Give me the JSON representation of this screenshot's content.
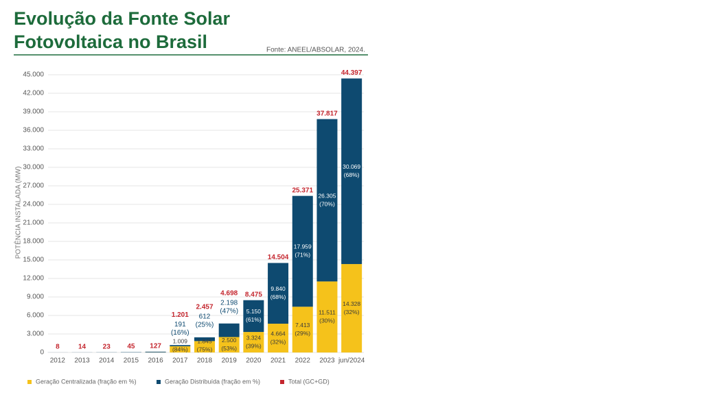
{
  "chart_data": {
    "type": "stacked_bar",
    "title": [
      "Evolução da Fonte Solar",
      "Fotovoltaica no Brasil"
    ],
    "source": "Fonte: ANEEL/ABSOLAR, 2024.",
    "y_label": "POTÊNCIA INSTALADA (MW)",
    "categories": [
      "2012",
      "2013",
      "2014",
      "2015",
      "2016",
      "2017",
      "2018",
      "2019",
      "2020",
      "2021",
      "2022",
      "2023",
      "jun/2024"
    ],
    "series": [
      {
        "name": "Geração Centralizada (fração em %)",
        "color": "#f5c21b",
        "values": [
          0,
          0,
          0,
          0,
          24,
          1009,
          1845,
          2500,
          3324,
          4664,
          7413,
          11511,
          14328
        ],
        "value_labels": [
          null,
          null,
          null,
          null,
          null,
          "1.009",
          "1.845",
          "2.500",
          "3.324",
          "4.664",
          "7.413",
          "11.511",
          "14.328"
        ],
        "share_labels": [
          null,
          null,
          null,
          null,
          null,
          "(84%)",
          "(75%)",
          "(53%)",
          "(39%)",
          "(32%)",
          "(29%)",
          "(30%)",
          "(32%)"
        ]
      },
      {
        "name": "Geração Distribuída (fração em %)",
        "color": "#0e4a70",
        "values": [
          8,
          14,
          23,
          45,
          103,
          191,
          612,
          2198,
          5150,
          9840,
          17959,
          26305,
          30069
        ],
        "value_labels": [
          null,
          null,
          null,
          null,
          null,
          "191",
          "612",
          "2.198",
          "5.150",
          "9.840",
          "17.959",
          "26.305",
          "30.069"
        ],
        "share_labels": [
          null,
          null,
          null,
          null,
          null,
          "(16%)",
          "(25%)",
          "(47%)",
          "(61%)",
          "(68%)",
          "(71%)",
          "(70%)",
          "(68%)"
        ]
      }
    ],
    "total": {
      "name": "Total (GC+GD)",
      "color": "#c4262e",
      "values": [
        8,
        14,
        23,
        45,
        127,
        1201,
        2457,
        4698,
        8475,
        14504,
        25371,
        37817,
        44397
      ],
      "value_labels": [
        "8",
        "14",
        "23",
        "45",
        "127",
        "1.201",
        "2.457",
        "4.698",
        "8.475",
        "14.504",
        "25.371",
        "37.817",
        "44.397"
      ]
    },
    "ylim": [
      0,
      45000
    ],
    "yticks": [
      0,
      {
        "value": 3000,
        "label": "3.000"
      },
      {
        "value": 6000,
        "label": "6.000"
      },
      {
        "value": 9000,
        "label": "9.000"
      },
      {
        "value": 12000,
        "label": "12.000"
      },
      {
        "value": 15000,
        "label": "15.000"
      },
      {
        "value": 18000,
        "label": "18.000"
      },
      {
        "value": 21000,
        "label": "21.000"
      },
      {
        "value": 24000,
        "label": "24.000"
      },
      {
        "value": 27000,
        "label": "27.000"
      },
      {
        "value": 30000,
        "label": "30.000"
      },
      {
        "value": 33000,
        "label": "33.000"
      },
      {
        "value": 36000,
        "label": "36.000"
      },
      {
        "value": 39000,
        "label": "39.000"
      },
      {
        "value": 42000,
        "label": "42.000"
      },
      {
        "value": 45000,
        "label": "45.000"
      }
    ],
    "grid": true
  }
}
